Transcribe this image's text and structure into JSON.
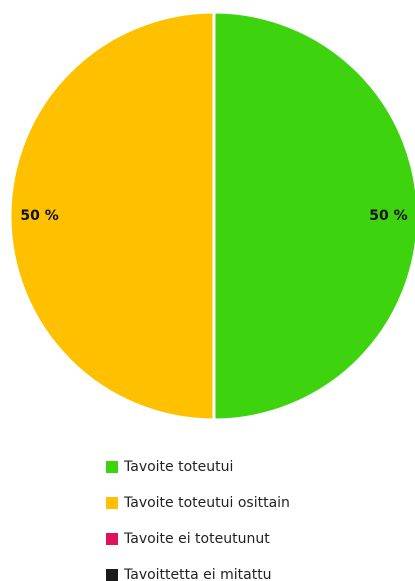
{
  "chart_data": {
    "type": "pie",
    "categories": [
      "Tavoite toteutui",
      "Tavoite toteutui osittain",
      "Tavoite ei toteutunut",
      "Tavoittetta ei mitattu"
    ],
    "values": [
      50,
      50,
      0,
      0
    ],
    "value_labels": [
      "50 %",
      "50 %",
      null,
      null
    ],
    "colors": [
      "#3dd30f",
      "#ffc000",
      "#e0115f",
      "#1a1a1a"
    ]
  }
}
